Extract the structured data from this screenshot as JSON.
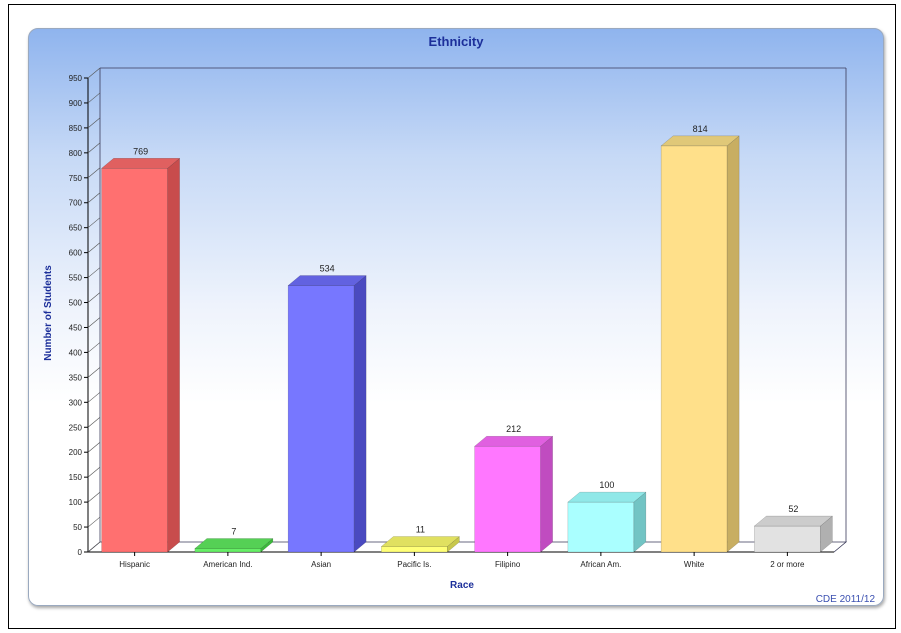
{
  "chart_data": {
    "type": "bar",
    "title": "Ethnicity",
    "xlabel": "Race",
    "ylabel": "Number of Students",
    "categories": [
      "Hispanic",
      "American Ind.",
      "Asian",
      "Pacific Is.",
      "Filipino",
      "African Am.",
      "White",
      "2 or more"
    ],
    "values": [
      769,
      7,
      534,
      11,
      212,
      100,
      814,
      52
    ],
    "ylim": [
      0,
      950
    ],
    "ytick_step": 50,
    "grid": false,
    "bar_colors": [
      "#ff7070",
      "#66ee66",
      "#7777ff",
      "#ffff77",
      "#ff77ff",
      "#aaffff",
      "#ffe08a",
      "#e2e2e2"
    ],
    "side_colors": [
      "#c84c4c",
      "#3cb83c",
      "#4a4ac0",
      "#c8c84c",
      "#c04cc0",
      "#72c4c4",
      "#c8ae62",
      "#b0b0b0"
    ],
    "top_colors": [
      "#e06060",
      "#55d055",
      "#6262e0",
      "#e0e060",
      "#e060e0",
      "#90e8e8",
      "#e0c878",
      "#cccccc"
    ]
  },
  "footer": {
    "credit": "CDE 2011/12"
  },
  "colors": {
    "title": "#1c2f9a",
    "axis_label": "#1c2f9a",
    "tick_text": "#222222",
    "credit": "#3a4fb0"
  }
}
